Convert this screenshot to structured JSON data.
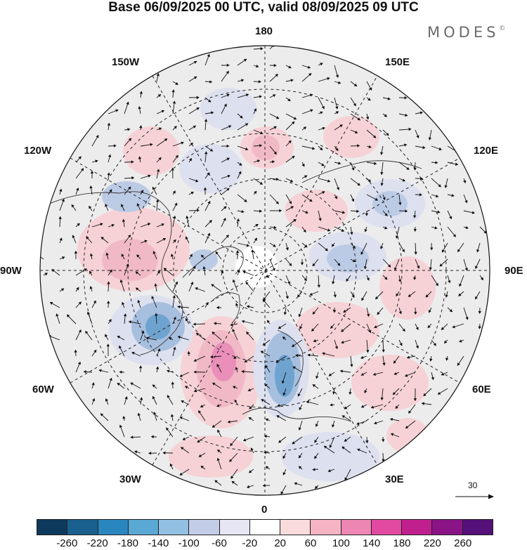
{
  "title": "Base 06/09/2025 00 UTC, valid 08/09/2025 09 UTC",
  "brand": {
    "name": "MODES",
    "mark": "©"
  },
  "longitude_labels": {
    "top": "180",
    "bottom": "0",
    "left": "90W",
    "right": "90E",
    "upper_left_1": "150W",
    "upper_left_2": "120W",
    "upper_right_1": "150E",
    "upper_right_2": "120E",
    "lower_left_1": "60W",
    "lower_left_2": "30W",
    "lower_right_1": "60E",
    "lower_right_2": "30E"
  },
  "wind_reference": {
    "value": "30"
  },
  "colorbar": {
    "colors": [
      "#0d3a5c",
      "#19608f",
      "#2a86bf",
      "#5aa8d4",
      "#92c0e2",
      "#c3cde8",
      "#e6e6f4",
      "#ffffff",
      "#fadcdc",
      "#f5b4c4",
      "#ee86b4",
      "#e14aa0",
      "#c0208e",
      "#8a1486",
      "#551079"
    ],
    "ticks": [
      "-260",
      "-220",
      "-180",
      "-140",
      "-100",
      "-60",
      "-20",
      "20",
      "60",
      "100",
      "140",
      "180",
      "220",
      "260"
    ]
  },
  "colors": {
    "land_shade": "#ebebeb",
    "grid": "#222222"
  }
}
